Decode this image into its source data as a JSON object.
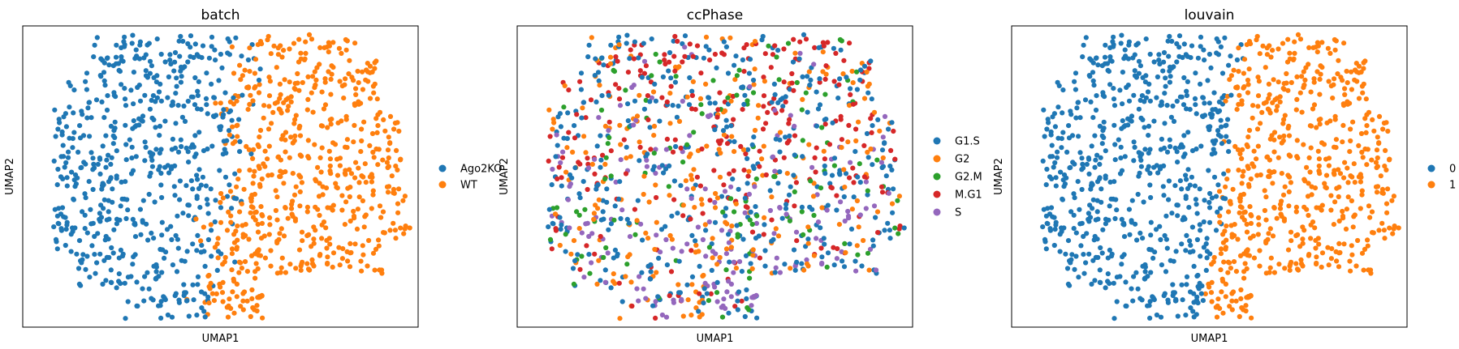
{
  "figure": {
    "palette": [
      "#1f77b4",
      "#ff7f0e",
      "#2ca02c",
      "#d62728",
      "#9467bd"
    ]
  },
  "chart_data": [
    {
      "type": "scatter",
      "title": "batch",
      "xlabel": "UMAP1",
      "ylabel": "UMAP2",
      "xticks": false,
      "yticks": false,
      "grid": false,
      "legend_position": "right",
      "legend": [
        {
          "label": "Ago2KO",
          "color": "#1f77b4"
        },
        {
          "label": "WT",
          "color": "#ff7f0e"
        }
      ],
      "xlim": [
        -9,
        9
      ],
      "ylim": [
        -7,
        7
      ],
      "point_count": 1200,
      "groups": [
        {
          "label": "Ago2KO",
          "color": "#1f77b4",
          "region": "left half",
          "approx_count": 620
        },
        {
          "label": "WT",
          "color": "#ff7f0e",
          "region": "right half",
          "approx_count": 580
        }
      ]
    },
    {
      "type": "scatter",
      "title": "ccPhase",
      "xlabel": "UMAP1",
      "ylabel": "UMAP2",
      "xticks": false,
      "yticks": false,
      "grid": false,
      "legend_position": "right",
      "legend": [
        {
          "label": "G1.S",
          "color": "#1f77b4"
        },
        {
          "label": "G2",
          "color": "#ff7f0e"
        },
        {
          "label": "G2.M",
          "color": "#2ca02c"
        },
        {
          "label": "M.G1",
          "color": "#d62728"
        },
        {
          "label": "S",
          "color": "#9467bd"
        }
      ],
      "xlim": [
        -9,
        9
      ],
      "ylim": [
        -7,
        7
      ],
      "point_count": 1200,
      "groups": [
        {
          "label": "G1.S",
          "color": "#1f77b4",
          "region": "throughout",
          "approx_count": 420
        },
        {
          "label": "G2",
          "color": "#ff7f0e",
          "region": "throughout",
          "approx_count": 260
        },
        {
          "label": "G2.M",
          "color": "#2ca02c",
          "region": "throughout",
          "approx_count": 150
        },
        {
          "label": "M.G1",
          "color": "#d62728",
          "region": "upper",
          "approx_count": 170
        },
        {
          "label": "S",
          "color": "#9467bd",
          "region": "lower-middle",
          "approx_count": 200
        }
      ]
    },
    {
      "type": "scatter",
      "title": "louvain",
      "xlabel": "UMAP1",
      "ylabel": "UMAP2",
      "xticks": false,
      "yticks": false,
      "grid": false,
      "legend_position": "right",
      "legend": [
        {
          "label": "0",
          "color": "#1f77b4"
        },
        {
          "label": "1",
          "color": "#ff7f0e"
        }
      ],
      "xlim": [
        -9,
        9
      ],
      "ylim": [
        -7,
        7
      ],
      "point_count": 1200,
      "groups": [
        {
          "label": "0",
          "color": "#1f77b4",
          "region": "left half",
          "approx_count": 640
        },
        {
          "label": "1",
          "color": "#ff7f0e",
          "region": "right half",
          "approx_count": 560
        }
      ]
    }
  ]
}
